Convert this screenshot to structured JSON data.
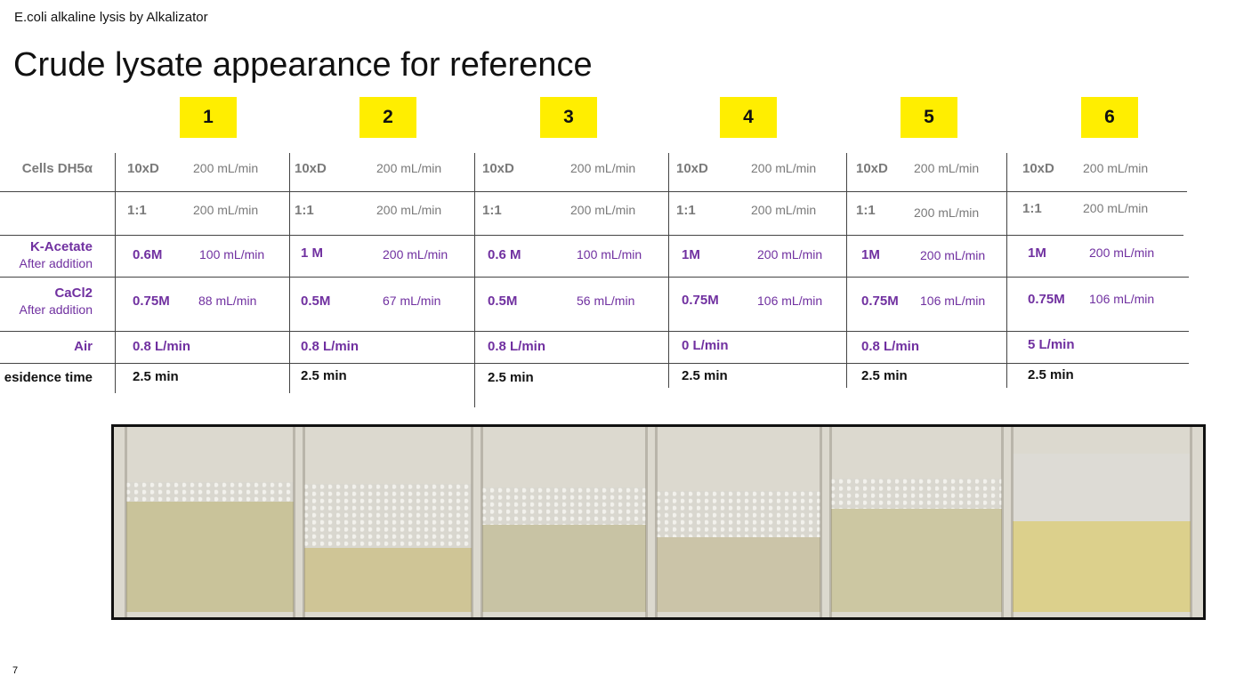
{
  "header": {
    "subtitle": "E.coli alkaline lysis by Alkalizator",
    "title": "Crude lysate appearance for reference"
  },
  "columns": [
    "1",
    "2",
    "3",
    "4",
    "5",
    "6"
  ],
  "row_labels": {
    "cells": "Cells DH5α",
    "katoac": "K-Acetate",
    "katoac_sub": "After addition",
    "cacl2": "CaCl2",
    "cacl2_sub": "After addition",
    "air": "Air",
    "residence": "esidence time"
  },
  "cells": [
    {
      "cells_v": "10xD",
      "cells_r": "200 mL/min",
      "ratio_v": "1:1",
      "ratio_r": "200 mL/min",
      "kac_v": "0.6M",
      "kac_r": "100 mL/min",
      "ca_v": "0.75M",
      "ca_r": "88 mL/min",
      "air": "0.8 L/min",
      "res": "2.5 min"
    },
    {
      "cells_v": "10xD",
      "cells_r": "200 mL/min",
      "ratio_v": "1:1",
      "ratio_r": "200 mL/min",
      "kac_v": "1 M",
      "kac_r": "200 mL/min",
      "ca_v": "0.5M",
      "ca_r": "67 mL/min",
      "air": "0.8 L/min",
      "res": "2.5 min"
    },
    {
      "cells_v": "10xD",
      "cells_r": "200 mL/min",
      "ratio_v": "1:1",
      "ratio_r": "200 mL/min",
      "kac_v": "0.6 M",
      "kac_r": "100 mL/min",
      "ca_v": "0.5M",
      "ca_r": "56 mL/min",
      "air": "0.8 L/min",
      "res": "2.5 min"
    },
    {
      "cells_v": "10xD",
      "cells_r": "200 mL/min",
      "ratio_v": "1:1",
      "ratio_r": "200 mL/min",
      "kac_v": "1M",
      "kac_r": "200 mL/min",
      "ca_v": "0.75M",
      "ca_r": "106 mL/min",
      "air": "0 L/min",
      "res": "2.5 min"
    },
    {
      "cells_v": "10xD",
      "cells_r": "200 mL/min",
      "ratio_v": "1:1",
      "ratio_r": "200 mL/min",
      "kac_v": "1M",
      "kac_r": "200 mL/min",
      "ca_v": "0.75M",
      "ca_r": "106 mL/min",
      "air": "0.8 L/min",
      "res": "2.5 min"
    },
    {
      "cells_v": "10xD",
      "cells_r": "200 mL/min",
      "ratio_v": "1:1",
      "ratio_r": "200 mL/min",
      "kac_v": "1M",
      "kac_r": "200 mL/min",
      "ca_v": "0.75M",
      "ca_r": "106 mL/min",
      "air": "5 L/min",
      "res": "2.5 min"
    }
  ],
  "photo": {
    "liquid_colors": [
      "#c9c39a",
      "#cfc596",
      "#c8c3a4",
      "#cbc4a8",
      "#ccc7a2",
      "#dcd08c"
    ],
    "foam_color": "#d9d7cf"
  },
  "footer": {
    "page_number": "7"
  }
}
